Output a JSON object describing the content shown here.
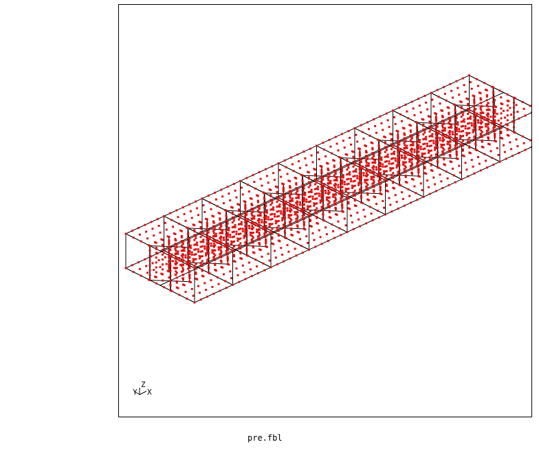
{
  "caption": "pre.fbl",
  "triad": {
    "labels": {
      "y": "Y",
      "z": "Z",
      "x": "X"
    }
  },
  "colors": {
    "mesh": "#000000",
    "points": "#e01010",
    "frame": "#000000"
  },
  "model": {
    "segments": 9,
    "description_icon": "wireframe-beam-icon"
  }
}
